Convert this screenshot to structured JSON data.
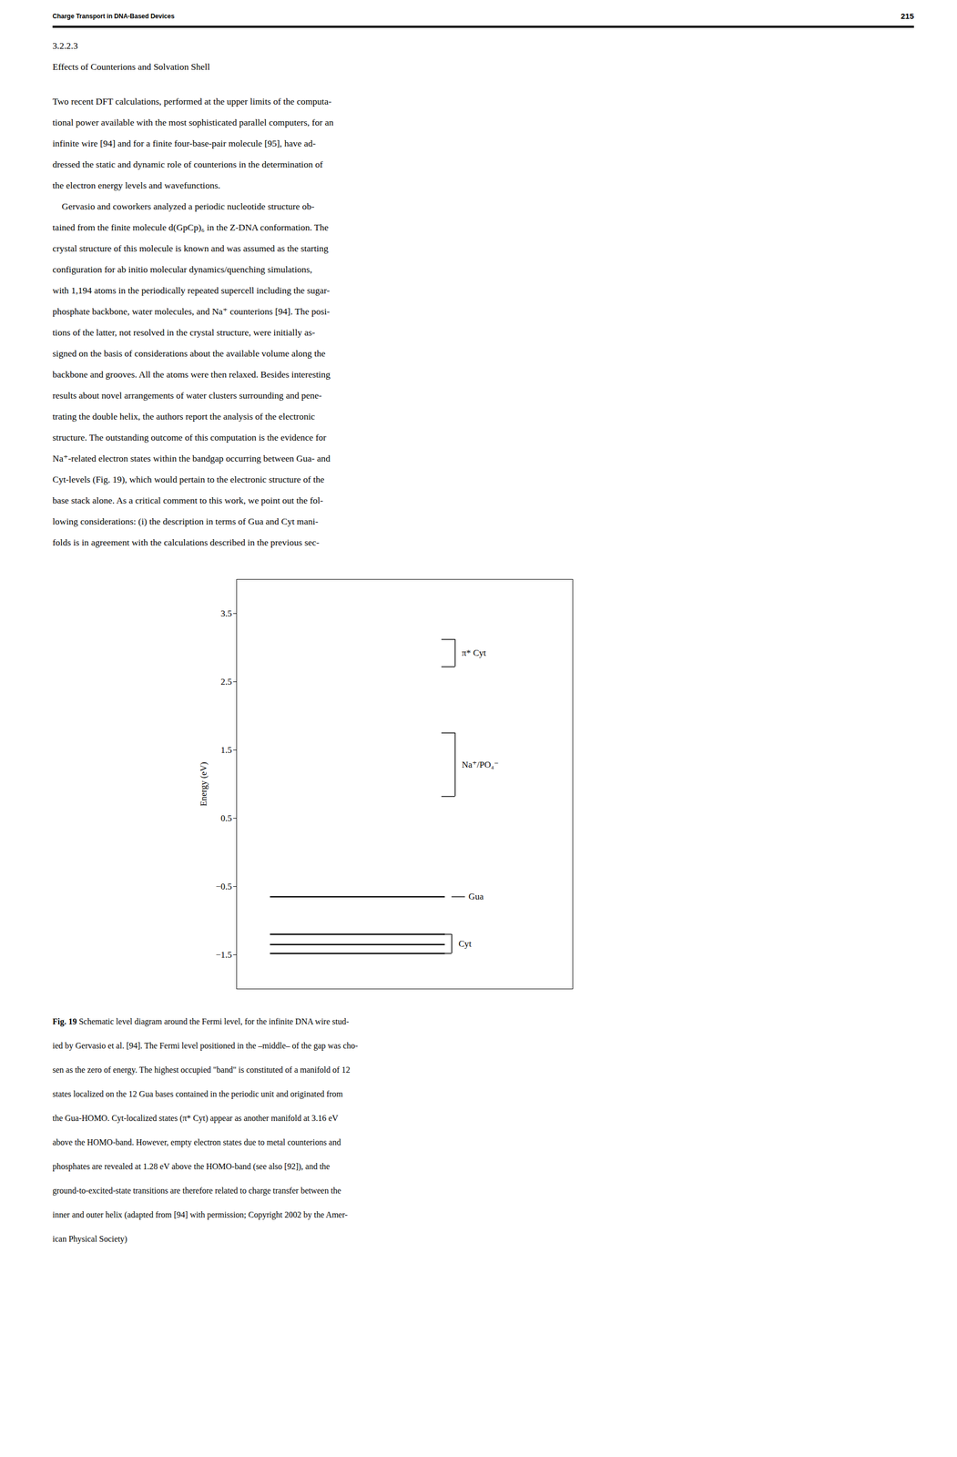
{
  "header_left": "Charge Transport in DNA-Based Devices",
  "header_right": "215",
  "section_number": "3.2.2.3",
  "section_title": "Effects of Counterions and Solvation Shell",
  "paragraphs": [
    [
      "Two recent DFT calculations, performed at the upper limits of the computa-",
      "tional power available with the most sophisticated parallel computers, for an",
      "infinite wire [94] and for a finite four-base-pair molecule [95], have ad-",
      "dressed the static and dynamic role of counterions in the determination of",
      "the electron energy levels and wavefunctions."
    ],
    [
      "    Gervasio and coworkers analyzed a periodic nucleotide structure ob-",
      "tained from the finite molecule d(GpCp)₆ in the Z-DNA conformation. The",
      "crystal structure of this molecule is known and was assumed as the starting",
      "configuration for ab initio molecular dynamics/quenching simulations,",
      "with 1,194 atoms in the periodically repeated supercell including the sugar-",
      "phosphate backbone, water molecules, and Na⁺ counterions [94]. The posi-",
      "tions of the latter, not resolved in the crystal structure, were initially as-",
      "signed on the basis of considerations about the available volume along the",
      "backbone and grooves. All the atoms were then relaxed. Besides interesting",
      "results about novel arrangements of water clusters surrounding and pene-",
      "trating the double helix, the authors report the analysis of the electronic",
      "structure. The outstanding outcome of this computation is the evidence for",
      "Na⁺-related electron states within the bandgap occurring between Gua- and",
      "Cyt-levels (Fig. 19), which would pertain to the electronic structure of the",
      "base stack alone. As a critical comment to this work, we point out the fol-",
      "lowing considerations: (i) the description in terms of Gua and Cyt mani-",
      "folds is in agreement with the calculations described in the previous sec-"
    ]
  ],
  "caption_label": "Fig. 19",
  "caption_lines": [
    " Schematic level diagram around the Fermi level, for the infinite DNA wire stud-",
    "ied by Gervasio et al. [94]. The Fermi level positioned in the –middle– of the gap was cho-",
    "sen as the zero of energy. The highest occupied \"band\" is constituted of a manifold of 12",
    "states localized on the 12 Gua bases contained in the periodic unit and originated from",
    "the Gua-HOMO. Cyt-localized states (π* Cyt) appear as another manifold at 3.16 eV",
    "above the HOMO-band. However, empty electron states due to metal counterions and",
    "phosphates are revealed at 1.28 eV above the HOMO-band (see also [92]), and the",
    "ground-to-excited-state transitions are therefore related to charge transfer between the",
    "inner and outer helix (adapted from [94] with permission; Copyright 2002 by the Amer-",
    "ican Physical Society)"
  ],
  "chart_data": {
    "type": "level_diagram",
    "ylabel": "Energy (eV)",
    "ylim": [
      -2.0,
      4.0
    ],
    "yticks": [
      -1.5,
      -0.5,
      0.5,
      1.5,
      2.5,
      3.5
    ],
    "tick_labels": "y",
    "levels": [
      {
        "name": "Gua",
        "values": [
          -0.65
        ]
      },
      {
        "name": "Cyt",
        "values": [
          -1.2,
          -1.35,
          -1.48
        ]
      }
    ],
    "bands": [
      {
        "name": "Na⁺/PO₄⁻",
        "range": [
          0.82,
          1.75
        ]
      },
      {
        "name": "π* Cyt",
        "range": [
          2.72,
          3.12
        ]
      }
    ]
  }
}
